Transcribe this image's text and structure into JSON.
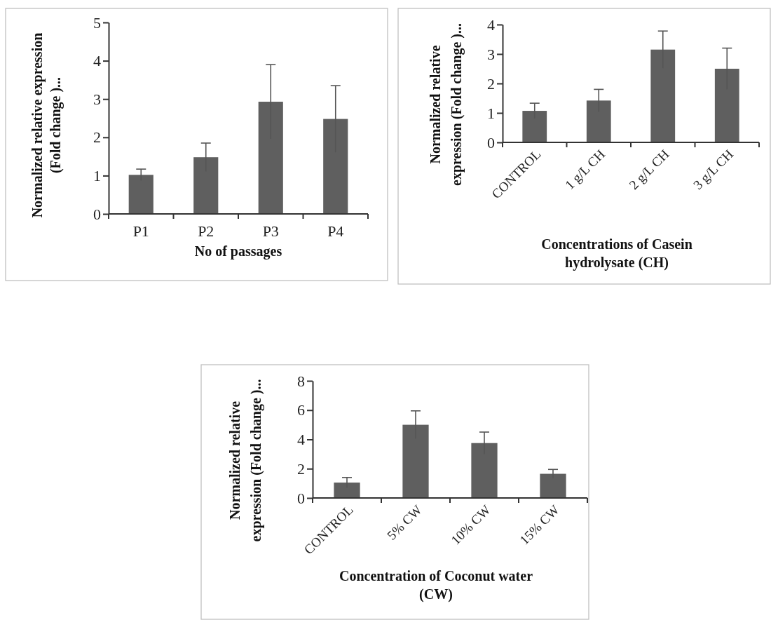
{
  "chart_data": [
    {
      "type": "bar",
      "xlabel": "No of passages",
      "ylabel": "Normalized relative expression\n(Fold change )...",
      "categories": [
        "P1",
        "P2",
        "P3",
        "P4"
      ],
      "values": [
        1.02,
        1.48,
        2.93,
        2.48
      ],
      "errors": [
        0.15,
        0.37,
        0.97,
        0.87
      ],
      "color": "#5f5f5f",
      "ylim": [
        0,
        5
      ],
      "yticks": [
        0,
        1,
        2,
        3,
        4,
        5
      ],
      "grid": false
    },
    {
      "type": "bar",
      "xlabel": "Concentrations of Casein\nhydrolysate (CH)",
      "ylabel": "Normalized relative\nexpression (Fold change )...",
      "categories": [
        "CONTROL",
        "1 g/L CH",
        "2 g/L CH",
        "3 g/L CH"
      ],
      "values": [
        1.07,
        1.42,
        3.15,
        2.5
      ],
      "errors": [
        0.26,
        0.38,
        0.63,
        0.7
      ],
      "color": "#5f5f5f",
      "ylim": [
        0,
        4
      ],
      "yticks": [
        0,
        1,
        2,
        3,
        4
      ],
      "grid": false
    },
    {
      "type": "bar",
      "xlabel": "Concentration of  Coconut water\n(CW)",
      "ylabel": "Normalized relative\nexpression (Fold change )...",
      "categories": [
        "CONTROL",
        "5% CW",
        "10% CW",
        "15% CW"
      ],
      "values": [
        1.05,
        5.0,
        3.75,
        1.65
      ],
      "errors": [
        0.35,
        0.95,
        0.75,
        0.3
      ],
      "color": "#5f5f5f",
      "ylim": [
        0,
        8
      ],
      "yticks": [
        0,
        2,
        4,
        6,
        8
      ],
      "grid": false
    }
  ]
}
